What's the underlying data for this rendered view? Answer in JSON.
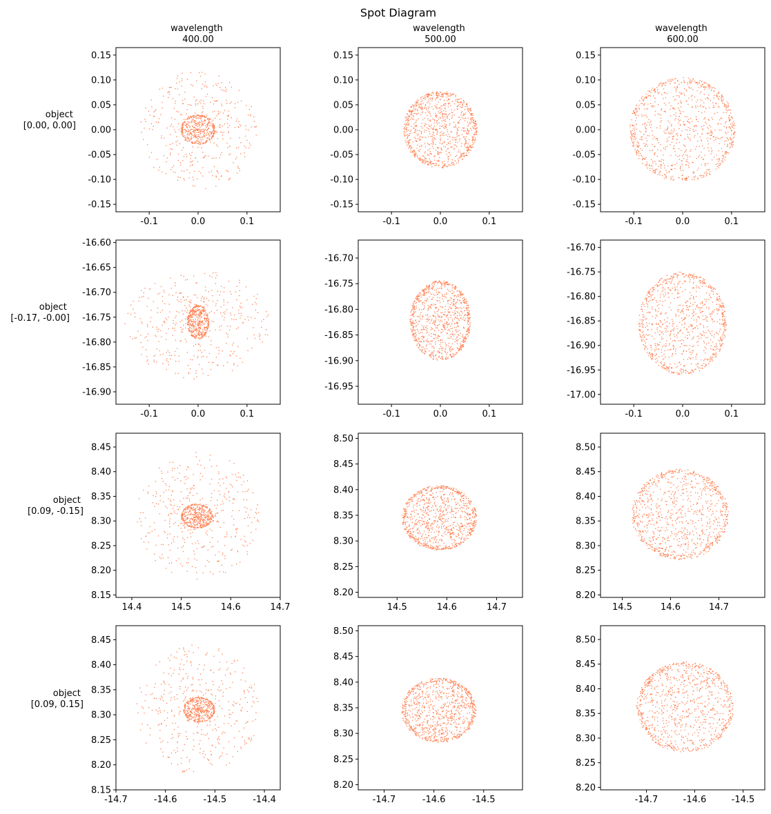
{
  "figure": {
    "title": "Spot Diagram",
    "column_headers": [
      {
        "line1": "wavelength",
        "line2": "400.00"
      },
      {
        "line1": "wavelength",
        "line2": "500.00"
      },
      {
        "line1": "wavelength",
        "line2": "600.00"
      }
    ],
    "row_headers": [
      {
        "line1": "object",
        "line2": "[0.00, 0.00]"
      },
      {
        "line1": "object",
        "line2": "[-0.17, -0.00]"
      },
      {
        "line1": "object",
        "line2": "[0.09, -0.15]"
      },
      {
        "line1": "object",
        "line2": "[0.09, 0.15]"
      }
    ]
  },
  "colors": {
    "points": "#ff7f50",
    "axes": "#000000",
    "background": "#ffffff"
  },
  "chart_data": [
    {
      "type": "scatter",
      "row": 0,
      "col": 0,
      "xlim": [
        -0.168,
        0.168
      ],
      "ylim": [
        -0.165,
        0.165
      ],
      "xticks": [
        "-0.1",
        "0.0",
        "0.1"
      ],
      "yticks": [
        "0.15",
        "0.10",
        "0.05",
        "0.00",
        "-0.05",
        "-0.10",
        "-0.15"
      ],
      "spots": [
        {
          "shape": "halo",
          "cx": 0.0,
          "cy": 0.0,
          "rx": 0.12,
          "ry": 0.12,
          "n": 420
        },
        {
          "shape": "disk",
          "cx": 0.0,
          "cy": 0.0,
          "rx": 0.035,
          "ry": 0.03,
          "n": 380
        }
      ]
    },
    {
      "type": "scatter",
      "row": 0,
      "col": 1,
      "xlim": [
        -0.168,
        0.168
      ],
      "ylim": [
        -0.165,
        0.165
      ],
      "xticks": [
        "-0.1",
        "0.0",
        "0.1"
      ],
      "yticks": [
        "0.15",
        "0.10",
        "0.05",
        "0.00",
        "-0.05",
        "-0.10",
        "-0.15"
      ],
      "spots": [
        {
          "shape": "disk",
          "cx": 0.0,
          "cy": 0.0,
          "rx": 0.075,
          "ry": 0.077,
          "n": 950
        }
      ]
    },
    {
      "type": "scatter",
      "row": 0,
      "col": 2,
      "xlim": [
        -0.168,
        0.168
      ],
      "ylim": [
        -0.165,
        0.165
      ],
      "xticks": [
        "-0.1",
        "0.0",
        "0.1"
      ],
      "yticks": [
        "0.15",
        "0.10",
        "0.05",
        "0.00",
        "-0.05",
        "-0.10",
        "-0.15"
      ],
      "spots": [
        {
          "shape": "disk",
          "cx": 0.0,
          "cy": 0.0,
          "rx": 0.108,
          "ry": 0.105,
          "n": 950
        }
      ]
    },
    {
      "type": "scatter",
      "row": 1,
      "col": 0,
      "xlim": [
        -0.168,
        0.168
      ],
      "ylim": [
        -16.925,
        -16.595
      ],
      "xticks": [
        "-0.1",
        "0.0",
        "0.1"
      ],
      "yticks": [
        "-16.60",
        "-16.65",
        "-16.70",
        "-16.75",
        "-16.80",
        "-16.85",
        "-16.90"
      ],
      "spots": [
        {
          "shape": "halo",
          "cx": 0.0,
          "cy": -16.765,
          "rx": 0.15,
          "ry": 0.11,
          "n": 450
        },
        {
          "shape": "disk",
          "cx": 0.0,
          "cy": -16.76,
          "rx": 0.022,
          "ry": 0.034,
          "n": 380
        }
      ]
    },
    {
      "type": "scatter",
      "row": 1,
      "col": 1,
      "xlim": [
        -0.168,
        0.168
      ],
      "ylim": [
        -16.985,
        -16.665
      ],
      "xticks": [
        "-0.1",
        "0.0",
        "0.1"
      ],
      "yticks": [
        "-16.70",
        "-16.75",
        "-16.80",
        "-16.85",
        "-16.90",
        "-16.95"
      ],
      "spots": [
        {
          "shape": "disk",
          "cx": 0.0,
          "cy": -16.822,
          "rx": 0.062,
          "ry": 0.078,
          "n": 950
        }
      ]
    },
    {
      "type": "scatter",
      "row": 1,
      "col": 2,
      "xlim": [
        -0.168,
        0.168
      ],
      "ylim": [
        -17.02,
        -16.685
      ],
      "xticks": [
        "-0.1",
        "0.0",
        "0.1"
      ],
      "yticks": [
        "-16.70",
        "-16.75",
        "-16.80",
        "-16.85",
        "-16.90",
        "-16.95",
        "-17.00"
      ],
      "spots": [
        {
          "shape": "disk",
          "cx": 0.0,
          "cy": -16.855,
          "rx": 0.09,
          "ry": 0.105,
          "n": 950
        }
      ]
    },
    {
      "type": "scatter",
      "row": 2,
      "col": 0,
      "xlim": [
        14.368,
        14.7
      ],
      "ylim": [
        8.145,
        8.478
      ],
      "xticks": [
        "14.4",
        "14.5",
        "14.6",
        "14.7"
      ],
      "yticks": [
        "8.45",
        "8.40",
        "8.35",
        "8.30",
        "8.25",
        "8.20",
        "8.15"
      ],
      "spots": [
        {
          "shape": "halo",
          "cx": 14.535,
          "cy": 8.31,
          "rx": 0.125,
          "ry": 0.13,
          "n": 450
        },
        {
          "shape": "disk",
          "cx": 14.532,
          "cy": 8.31,
          "rx": 0.032,
          "ry": 0.025,
          "n": 380
        }
      ]
    },
    {
      "type": "scatter",
      "row": 2,
      "col": 1,
      "xlim": [
        14.422,
        14.752
      ],
      "ylim": [
        8.19,
        8.51
      ],
      "xticks": [
        "14.5",
        "14.6",
        "14.7"
      ],
      "yticks": [
        "8.50",
        "8.45",
        "8.40",
        "8.35",
        "8.30",
        "8.25",
        "8.20"
      ],
      "spots": [
        {
          "shape": "disk",
          "cx": 14.585,
          "cy": 8.345,
          "rx": 0.075,
          "ry": 0.063,
          "n": 950
        }
      ]
    },
    {
      "type": "scatter",
      "row": 2,
      "col": 2,
      "xlim": [
        14.455,
        14.795
      ],
      "ylim": [
        8.195,
        8.528
      ],
      "xticks": [
        "14.5",
        "14.6",
        "14.7"
      ],
      "yticks": [
        "8.50",
        "8.45",
        "8.40",
        "8.35",
        "8.30",
        "8.25",
        "8.20"
      ],
      "spots": [
        {
          "shape": "disk",
          "cx": 14.62,
          "cy": 8.363,
          "rx": 0.1,
          "ry": 0.092,
          "n": 950
        }
      ]
    },
    {
      "type": "scatter",
      "row": 3,
      "col": 0,
      "xlim": [
        -14.7,
        -14.368
      ],
      "ylim": [
        8.15,
        8.478
      ],
      "xticks": [
        "-14.7",
        "-14.6",
        "-14.5",
        "-14.4"
      ],
      "yticks": [
        "8.45",
        "8.40",
        "8.35",
        "8.30",
        "8.25",
        "8.20",
        "8.15"
      ],
      "spots": [
        {
          "shape": "halo",
          "cx": -14.535,
          "cy": 8.31,
          "rx": 0.125,
          "ry": 0.13,
          "n": 450
        },
        {
          "shape": "disk",
          "cx": -14.532,
          "cy": 8.31,
          "rx": 0.032,
          "ry": 0.025,
          "n": 380
        }
      ]
    },
    {
      "type": "scatter",
      "row": 3,
      "col": 1,
      "xlim": [
        -14.752,
        -14.422
      ],
      "ylim": [
        8.19,
        8.51
      ],
      "xticks": [
        "-14.7",
        "-14.6",
        "-14.5"
      ],
      "yticks": [
        "8.50",
        "8.45",
        "8.40",
        "8.35",
        "8.30",
        "8.25",
        "8.20"
      ],
      "spots": [
        {
          "shape": "disk",
          "cx": -14.59,
          "cy": 8.345,
          "rx": 0.075,
          "ry": 0.063,
          "n": 950
        }
      ]
    },
    {
      "type": "scatter",
      "row": 3,
      "col": 2,
      "xlim": [
        -14.795,
        -14.455
      ],
      "ylim": [
        8.195,
        8.528
      ],
      "xticks": [
        "-14.7",
        "-14.6",
        "-14.5"
      ],
      "yticks": [
        "8.50",
        "8.45",
        "8.40",
        "8.35",
        "8.30",
        "8.25",
        "8.20"
      ],
      "spots": [
        {
          "shape": "disk",
          "cx": -14.62,
          "cy": 8.363,
          "rx": 0.1,
          "ry": 0.092,
          "n": 950
        }
      ]
    }
  ]
}
